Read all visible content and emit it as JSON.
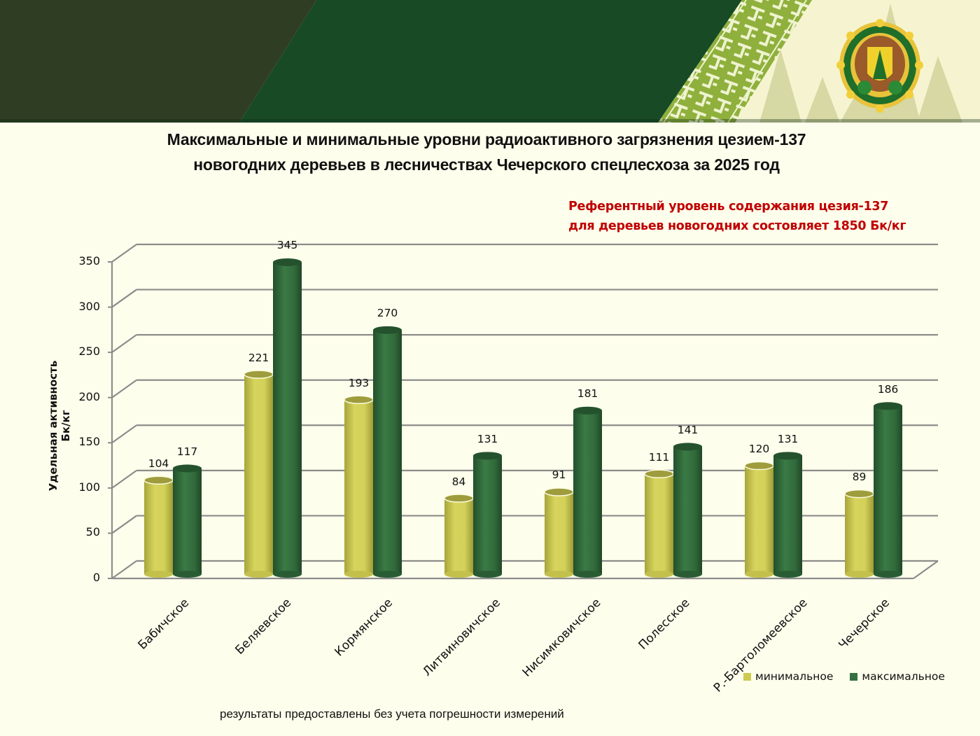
{
  "header": {
    "banner": {
      "colors": {
        "left": "#2f3d22",
        "mid": "#174a25",
        "ornament": "#8faf3a",
        "right": "#f5f4cf"
      },
      "logo": "forestry-emblem-icon"
    },
    "title_line1": "Максимальные и минимальные уровни радиоактивного загрязнения цезием-137",
    "title_line2": "новогодних деревьев в лесничествах Чечерского спецлесхоза  за 2025 год"
  },
  "reference_note": {
    "line1": "Референтный уровень содержания цезия-137",
    "line2": "для деревьев новогодних  состовляет 1850 Бк/кг",
    "color": "#c00000"
  },
  "footnote": "результаты предоставлены без  учета  погрешности измерений",
  "legend": {
    "min_label": "минимальное",
    "max_label": "максимальное",
    "min_color": "#cdcb4f",
    "max_color": "#367040"
  },
  "axis": {
    "ylabel": "Удельная активность Бк/кг",
    "yticks": [
      "0",
      "50",
      "100",
      "150",
      "200",
      "250",
      "300",
      "350"
    ]
  },
  "chart_data": {
    "type": "bar",
    "title": "Максимальные и минимальные уровни радиоактивного загрязнения цезием-137 новогодних деревьев в лесничествах Чечерского спецлесхоза за 2025 год",
    "subtitle": "Референтный уровень содержания цезия-137 для деревьев новогодних состовляет 1850 Бк/кг",
    "xlabel": "",
    "ylabel": "Удельная активность Бк/кг",
    "ylim": [
      0,
      350
    ],
    "yticks": [
      0,
      50,
      100,
      150,
      200,
      250,
      300,
      350
    ],
    "grid": true,
    "style": "3d-cylinder",
    "legend_position": "bottom-right",
    "categories": [
      "Бабичское",
      "Беляевское",
      "Кормянское",
      "Литвиновичское",
      "Нисимковичское",
      "Полесское",
      "Р.-Бартоломеевское",
      "Чечерское"
    ],
    "series": [
      {
        "name": "минимальное",
        "color": "#cdcb4f",
        "values": [
          104,
          221,
          193,
          84,
          91,
          111,
          120,
          89
        ]
      },
      {
        "name": "максимальное",
        "color": "#367040",
        "values": [
          117,
          345,
          270,
          131,
          181,
          141,
          131,
          186
        ]
      }
    ],
    "annotations": [
      "результаты предоставлены без  учета  погрешности измерений"
    ]
  }
}
